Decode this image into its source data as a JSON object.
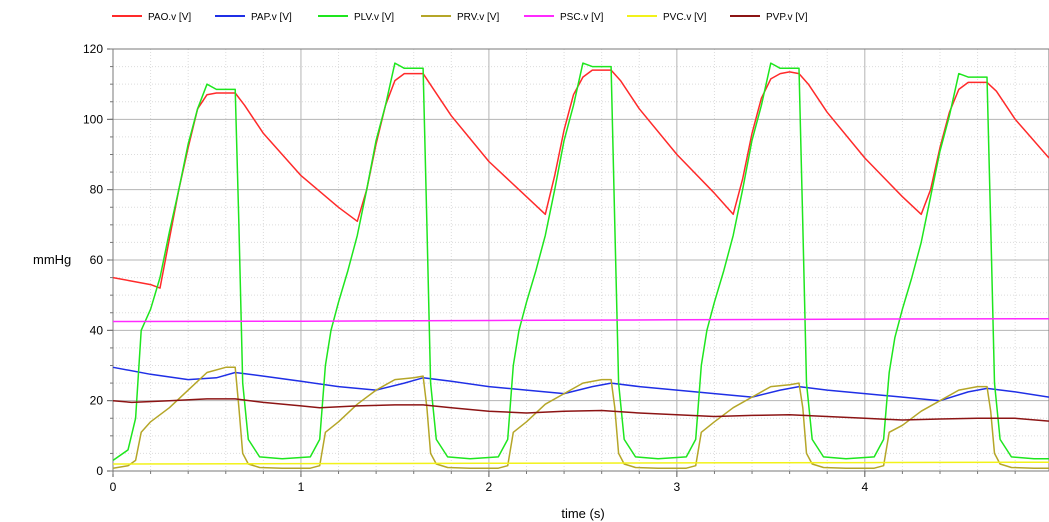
{
  "chart_data": {
    "type": "line",
    "title": "",
    "xlabel": "time (s)",
    "ylabel": "mmHg",
    "xlim": [
      0,
      4.98
    ],
    "ylim": [
      0,
      120
    ],
    "x_ticks": [
      0,
      1,
      2,
      3,
      4
    ],
    "y_ticks": [
      0,
      20,
      40,
      60,
      80,
      100,
      120
    ],
    "grid": true,
    "legend_position": "top-left",
    "series": [
      {
        "name": "PAO.v [V]",
        "color": "#ff2a2a",
        "x": [
          0,
          0.1,
          0.2,
          0.25,
          0.3,
          0.35,
          0.4,
          0.45,
          0.5,
          0.55,
          0.6,
          0.65,
          0.7,
          0.8,
          1.0,
          1.2,
          1.3,
          1.35,
          1.4,
          1.45,
          1.5,
          1.55,
          1.6,
          1.65,
          1.7,
          1.8,
          2.0,
          2.2,
          2.3,
          2.35,
          2.4,
          2.45,
          2.5,
          2.55,
          2.6,
          2.65,
          2.7,
          2.8,
          3.0,
          3.2,
          3.3,
          3.35,
          3.4,
          3.45,
          3.5,
          3.55,
          3.6,
          3.65,
          3.7,
          3.8,
          4.0,
          4.2,
          4.3,
          4.35,
          4.4,
          4.45,
          4.5,
          4.55,
          4.6,
          4.65,
          4.7,
          4.8,
          4.98
        ],
        "y": [
          55,
          54,
          53,
          52,
          66,
          80,
          92,
          103,
          107,
          107.5,
          107.5,
          107.5,
          104,
          96,
          84,
          75,
          71,
          80,
          93,
          104,
          111,
          113,
          113,
          113,
          109,
          101,
          88,
          78,
          73,
          84,
          97,
          107,
          112,
          114,
          114,
          114,
          111,
          103,
          90,
          79,
          73,
          83,
          96,
          106,
          111.5,
          113,
          113.5,
          113,
          110,
          102,
          89,
          78,
          73,
          80,
          92,
          102,
          108.5,
          110.5,
          110.5,
          110.5,
          108,
          100,
          89
        ]
      },
      {
        "name": "PAP.v [V]",
        "color": "#1f2fe6",
        "x": [
          0,
          0.2,
          0.4,
          0.55,
          0.65,
          0.8,
          1.0,
          1.2,
          1.4,
          1.55,
          1.65,
          1.8,
          2.0,
          2.2,
          2.4,
          2.55,
          2.65,
          2.8,
          3.0,
          3.2,
          3.4,
          3.55,
          3.65,
          3.8,
          4.0,
          4.2,
          4.4,
          4.55,
          4.65,
          4.8,
          4.98
        ],
        "y": [
          29.5,
          27.5,
          26,
          26.5,
          28,
          27,
          25.5,
          24,
          23,
          25,
          26.5,
          25.5,
          24,
          23,
          22,
          24,
          25,
          24,
          23,
          22,
          21,
          23,
          24,
          23,
          22,
          21,
          20,
          22.5,
          23.5,
          22.5,
          21
        ]
      },
      {
        "name": "PLV.v [V]",
        "color": "#1ee61e",
        "x": [
          0,
          0.08,
          0.12,
          0.15,
          0.2,
          0.25,
          0.3,
          0.35,
          0.4,
          0.45,
          0.5,
          0.55,
          0.6,
          0.65,
          0.67,
          0.69,
          0.72,
          0.78,
          0.9,
          1.05,
          1.1,
          1.13,
          1.16,
          1.2,
          1.25,
          1.3,
          1.35,
          1.4,
          1.45,
          1.5,
          1.55,
          1.6,
          1.65,
          1.67,
          1.69,
          1.72,
          1.78,
          1.9,
          2.05,
          2.1,
          2.13,
          2.16,
          2.2,
          2.25,
          2.3,
          2.35,
          2.4,
          2.45,
          2.5,
          2.55,
          2.6,
          2.65,
          2.67,
          2.69,
          2.72,
          2.78,
          2.9,
          3.05,
          3.1,
          3.13,
          3.16,
          3.2,
          3.25,
          3.3,
          3.35,
          3.4,
          3.45,
          3.5,
          3.55,
          3.6,
          3.65,
          3.67,
          3.69,
          3.72,
          3.78,
          3.9,
          4.05,
          4.1,
          4.13,
          4.16,
          4.2,
          4.25,
          4.3,
          4.35,
          4.4,
          4.45,
          4.5,
          4.55,
          4.6,
          4.65,
          4.67,
          4.69,
          4.72,
          4.78,
          4.9,
          4.98
        ],
        "y": [
          3,
          6,
          15,
          40,
          46,
          55,
          68,
          80,
          93,
          103,
          110,
          108.5,
          108.5,
          108.5,
          70,
          25,
          9,
          4,
          3.5,
          4,
          9,
          30,
          40,
          48,
          57,
          67,
          80,
          94,
          104,
          116,
          114.5,
          114.5,
          114.5,
          70,
          25,
          9,
          4,
          3.5,
          4,
          9,
          30,
          40,
          48,
          57,
          67,
          80,
          94,
          104,
          116,
          115,
          115,
          115,
          70,
          25,
          9,
          4,
          3.5,
          4,
          9,
          30,
          40,
          48,
          57,
          67,
          80,
          94,
          104,
          116,
          114.5,
          114.5,
          114.5,
          70,
          25,
          9,
          4,
          3.5,
          4,
          9,
          28,
          38,
          46,
          55,
          65,
          78,
          91,
          101,
          113,
          112,
          112,
          112,
          70,
          25,
          9,
          4,
          3.5,
          3.5
        ]
      },
      {
        "name": "PRV.v [V]",
        "color": "#b5a628",
        "x": [
          0,
          0.08,
          0.12,
          0.15,
          0.2,
          0.3,
          0.4,
          0.5,
          0.6,
          0.65,
          0.67,
          0.69,
          0.72,
          0.78,
          0.9,
          1.05,
          1.1,
          1.13,
          1.2,
          1.3,
          1.4,
          1.5,
          1.6,
          1.65,
          1.67,
          1.69,
          1.72,
          1.78,
          1.9,
          2.05,
          2.1,
          2.13,
          2.2,
          2.3,
          2.4,
          2.5,
          2.6,
          2.65,
          2.67,
          2.69,
          2.72,
          2.78,
          2.9,
          3.05,
          3.1,
          3.13,
          3.2,
          3.3,
          3.4,
          3.5,
          3.6,
          3.65,
          3.67,
          3.69,
          3.72,
          3.78,
          3.9,
          4.05,
          4.1,
          4.13,
          4.2,
          4.3,
          4.4,
          4.5,
          4.6,
          4.65,
          4.67,
          4.69,
          4.72,
          4.78,
          4.9,
          4.98
        ],
        "y": [
          0.8,
          1.5,
          3,
          11,
          14,
          18,
          23,
          28,
          29.5,
          29.5,
          18,
          5,
          2,
          1,
          0.8,
          0.8,
          1.5,
          11,
          14,
          19,
          23,
          26,
          26.5,
          27,
          18,
          5,
          2,
          1,
          0.8,
          0.8,
          1.5,
          11,
          14,
          19,
          22,
          25,
          26,
          26,
          18,
          5,
          2,
          1,
          0.8,
          0.8,
          1.5,
          11,
          14,
          18,
          21,
          24,
          24.5,
          25,
          18,
          5,
          2,
          1,
          0.8,
          0.8,
          1.5,
          11,
          13,
          17,
          20,
          23,
          24,
          24,
          17,
          5,
          2,
          1,
          0.8,
          0.8
        ]
      },
      {
        "name": "PSC.v [V]",
        "color": "#ff2aff",
        "x": [
          0,
          1,
          2,
          3,
          4,
          4.98
        ],
        "y": [
          42.5,
          42.6,
          42.8,
          43,
          43.2,
          43.3
        ]
      },
      {
        "name": "PVC.v [V]",
        "color": "#f2f21a",
        "x": [
          0,
          1,
          2,
          3,
          4,
          4.98
        ],
        "y": [
          2,
          2.1,
          2.2,
          2.3,
          2.4,
          2.5
        ]
      },
      {
        "name": "PVP.v [V]",
        "color": "#8c1414",
        "x": [
          0,
          0.1,
          0.3,
          0.5,
          0.65,
          0.8,
          1.0,
          1.1,
          1.3,
          1.5,
          1.65,
          1.8,
          2.0,
          2.2,
          2.4,
          2.6,
          2.8,
          3.0,
          3.2,
          3.4,
          3.6,
          3.8,
          4.0,
          4.2,
          4.4,
          4.6,
          4.8,
          4.98
        ],
        "y": [
          20,
          19.5,
          20,
          20.5,
          20.5,
          19.5,
          18.5,
          18,
          18.5,
          18.8,
          18.8,
          18,
          17,
          16.5,
          17,
          17.2,
          16.5,
          16,
          15.5,
          15.8,
          16,
          15.5,
          15,
          14.5,
          14.8,
          15,
          15,
          14.2
        ]
      }
    ]
  }
}
